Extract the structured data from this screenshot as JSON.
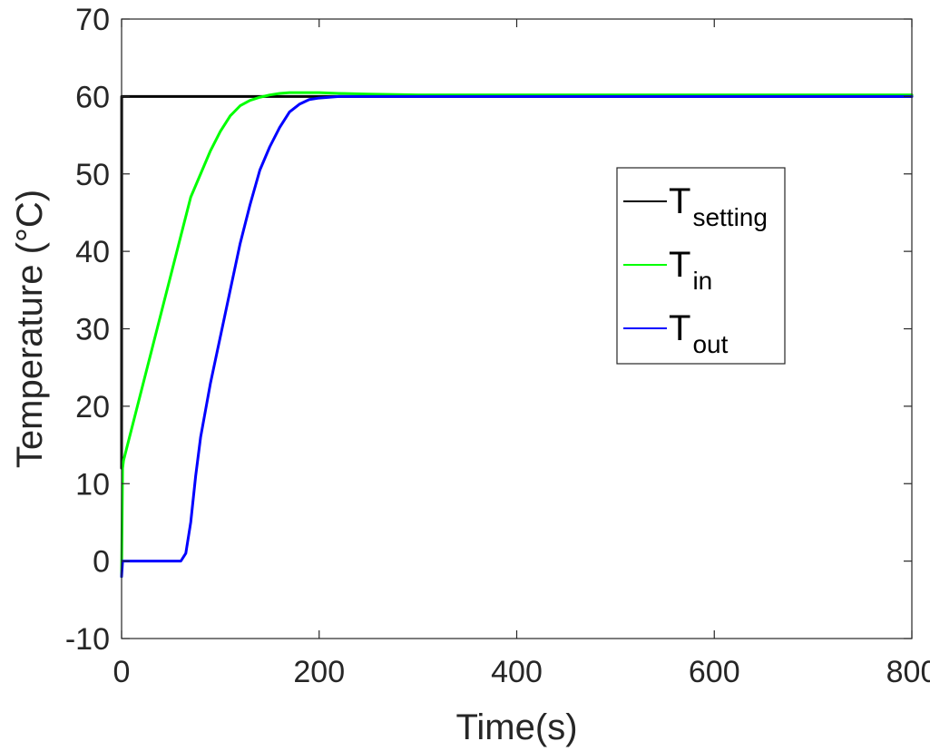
{
  "chart_data": {
    "type": "line",
    "xlabel": "Time(s)",
    "ylabel": "Temperature (°C)",
    "xlim": [
      0,
      800
    ],
    "ylim": [
      -10,
      70
    ],
    "xticks": [
      "0",
      "200",
      "400",
      "600",
      "800"
    ],
    "yticks": [
      "-10",
      "0",
      "10",
      "20",
      "30",
      "40",
      "50",
      "60",
      "70"
    ],
    "grid": false,
    "legend_position": "upper-right",
    "series": [
      {
        "name": "T",
        "name_subscript": "setting",
        "color": "#000000",
        "x": [
          0,
          0.1,
          800
        ],
        "y": [
          12,
          60,
          60
        ]
      },
      {
        "name": "T",
        "name_subscript": "in",
        "color": "#00ff00",
        "x": [
          0,
          1,
          2,
          10,
          20,
          30,
          40,
          50,
          60,
          70,
          80,
          90,
          100,
          110,
          120,
          130,
          140,
          150,
          160,
          170,
          180,
          190,
          200,
          220,
          250,
          300,
          400,
          500,
          600,
          700,
          800
        ],
        "y": [
          -2,
          12,
          13,
          17,
          22,
          27,
          32,
          37,
          42,
          47,
          50,
          53,
          55.5,
          57.5,
          58.8,
          59.5,
          59.9,
          60.2,
          60.4,
          60.5,
          60.5,
          60.5,
          60.5,
          60.4,
          60.3,
          60.2,
          60.2,
          60.2,
          60.2,
          60.2,
          60.2
        ]
      },
      {
        "name": "T",
        "name_subscript": "out",
        "color": "#0000ff",
        "x": [
          0,
          1,
          10,
          20,
          30,
          40,
          50,
          55,
          60,
          65,
          70,
          75,
          80,
          90,
          100,
          110,
          120,
          130,
          140,
          150,
          160,
          170,
          180,
          190,
          200,
          210,
          220,
          230,
          240,
          250,
          260,
          300,
          400,
          500,
          600,
          700,
          800
        ],
        "y": [
          -2,
          0,
          0,
          0,
          0,
          0,
          0,
          0,
          0,
          1,
          5,
          11,
          16,
          23,
          29,
          35,
          41,
          46,
          50.5,
          53.5,
          56,
          58,
          59,
          59.6,
          59.8,
          59.9,
          60,
          60,
          60,
          60,
          60,
          60,
          60,
          60,
          60,
          60,
          60
        ]
      }
    ]
  }
}
